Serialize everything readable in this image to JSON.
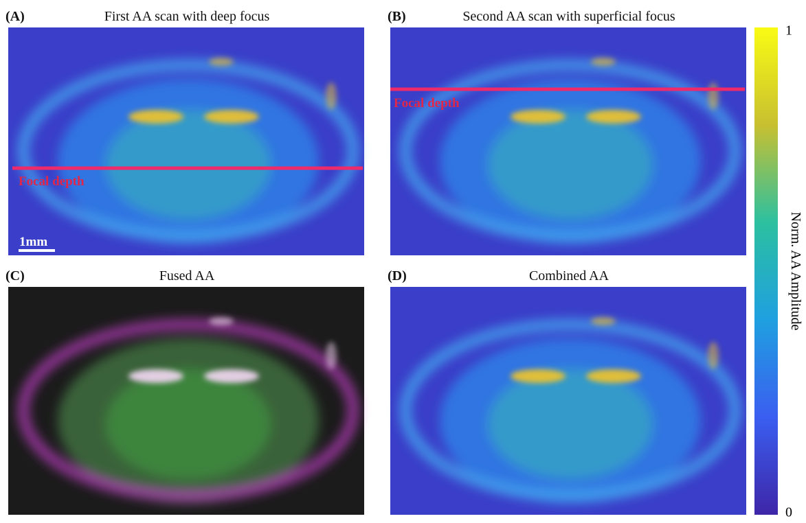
{
  "panels": [
    {
      "label": "(A)",
      "title": "First AA scan with deep focus",
      "annotation": "Focal depth",
      "scale_bar": "1mm"
    },
    {
      "label": "(B)",
      "title": "Second AA scan with superficial focus",
      "annotation": "Focal depth"
    },
    {
      "label": "(C)",
      "title": "Fused AA"
    },
    {
      "label": "(D)",
      "title": "Combined AA"
    }
  ],
  "colorbar": {
    "label": "Norm. AA Amplitude",
    "ticks": [
      1,
      0
    ]
  }
}
